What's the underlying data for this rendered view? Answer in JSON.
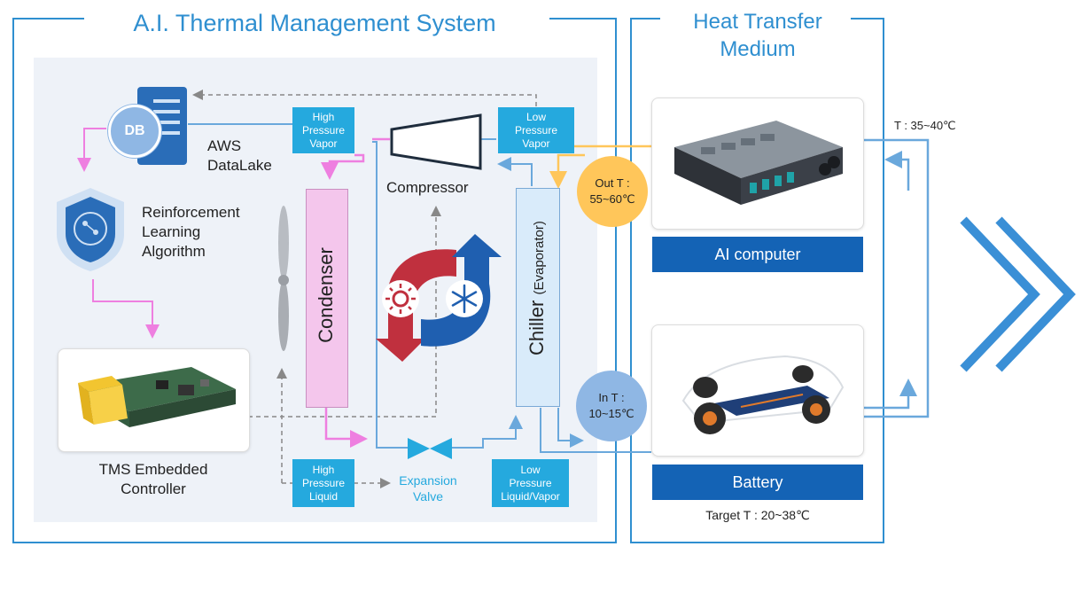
{
  "tms": {
    "title": "A.I. Thermal Management System",
    "aws": {
      "db": "DB",
      "line1": "AWS",
      "line2": "DataLake"
    },
    "rl": {
      "line1": "Reinforcement",
      "line2": "Learning",
      "line3": "Algorithm"
    },
    "controller": {
      "line1": "TMS Embedded",
      "line2": "Controller"
    },
    "hp_vapor": {
      "line1": "High",
      "line2": "Pressure",
      "line3": "Vapor"
    },
    "lp_vapor": {
      "line1": "Low",
      "line2": "Pressure",
      "line3": "Vapor"
    },
    "hp_liquid": {
      "line1": "High",
      "line2": "Pressure",
      "line3": "Liquid"
    },
    "lp_liquid_vapor": {
      "line1": "Low",
      "line2": "Pressure",
      "line3": "Liquid/Vapor"
    },
    "compressor": "Compressor",
    "condenser": "Condenser",
    "chiller_main": "Chiller",
    "chiller_sub": "(Evaporator)",
    "expansion": {
      "line1": "Expansion",
      "line2": "Valve"
    }
  },
  "medium": {
    "title_line1": "Heat Transfer",
    "title_line2": "Medium",
    "ai_computer": "AI computer",
    "battery": "Battery",
    "out_t": {
      "line1": "Out T :",
      "line2": "55~60℃"
    },
    "in_t": {
      "line1": "In T :",
      "line2": "10~15℃"
    },
    "target_t": "Target T : 20~38℃",
    "t_range": "T : 35~40℃"
  },
  "colors": {
    "frame": "#2f8fd0",
    "panel_bg": "#eef2f8",
    "tag": "#25a9de",
    "condenser": "#f4c6ec",
    "chiller": "#d9ebfa",
    "pink_line": "#ee7fe0",
    "blue_line": "#6aa8dc",
    "orange": "#ffc65a",
    "bar_blue": "#1463b5",
    "chevron": "#3a8fd6"
  },
  "icons": [
    "database-icon",
    "server-icon",
    "brain-shield-icon",
    "fan-icon",
    "heat-icon",
    "snowflake-icon",
    "valve-icon",
    "chevron-right-icon"
  ]
}
